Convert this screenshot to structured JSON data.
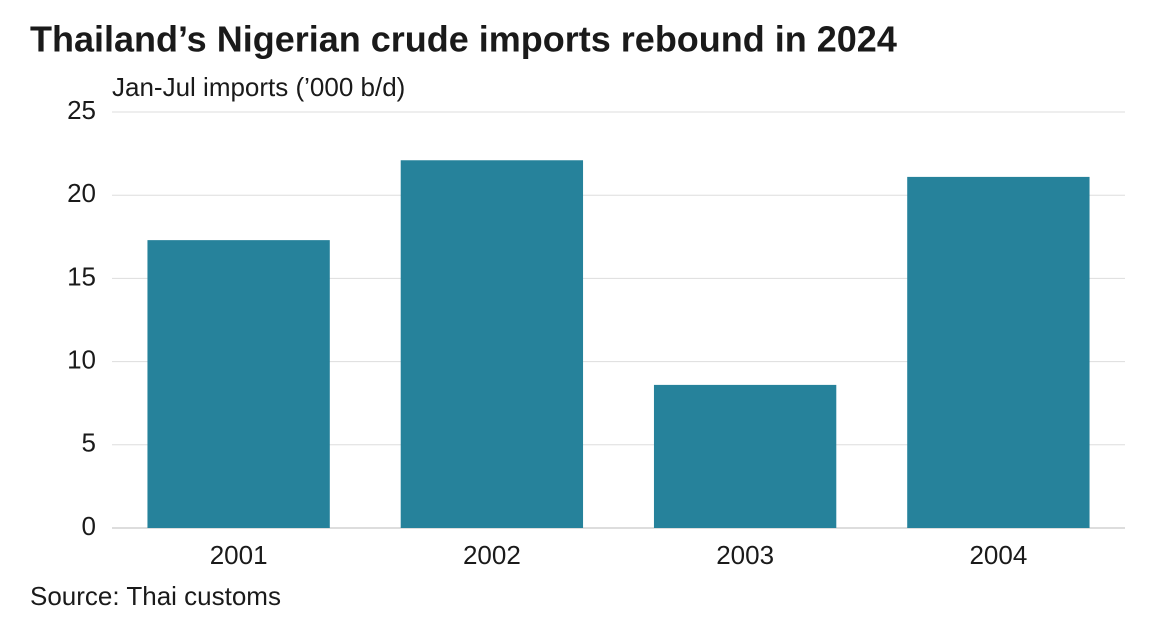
{
  "chart_data": {
    "type": "bar",
    "title": "Thailand’s Nigerian crude imports rebound in 2024",
    "subtitle": "Jan-Jul imports (’000 b/d)",
    "categories": [
      "2001",
      "2002",
      "2003",
      "2004"
    ],
    "values": [
      17.3,
      22.1,
      8.6,
      21.1
    ],
    "color": "#26829b",
    "ylim": [
      0,
      25
    ],
    "yticks": [
      0,
      5,
      10,
      15,
      20,
      25
    ],
    "grid": true,
    "source": "Source: Thai customs"
  }
}
